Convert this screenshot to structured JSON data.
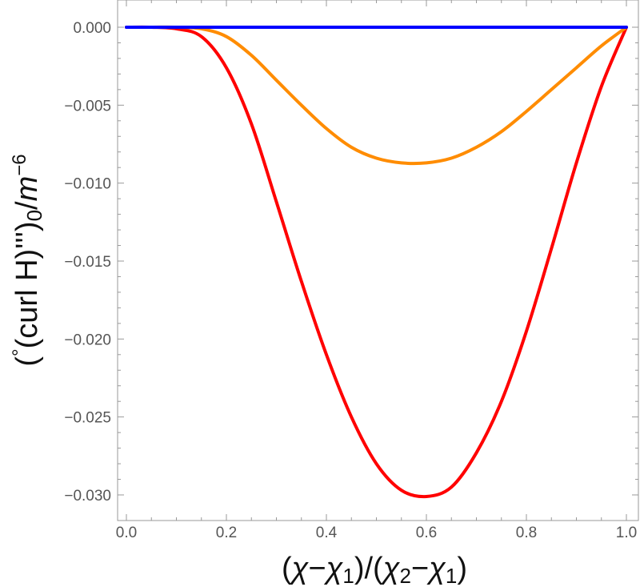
{
  "chart_data": {
    "type": "line",
    "xlabel_parts": [
      "(",
      "χ",
      "−",
      "χ",
      "1",
      ")/(",
      "χ",
      "2",
      "−",
      "χ",
      "1",
      ")"
    ],
    "ylabel_parts": [
      "(",
      "°",
      "(curl H)''')",
      "0",
      "/",
      "m",
      "−6"
    ],
    "xlim": [
      0.0,
      1.0
    ],
    "ylim": [
      -0.0315,
      0.0
    ],
    "x_ticks": [
      "0.0",
      "0.2",
      "0.4",
      "0.6",
      "0.8",
      "1.0"
    ],
    "x_tick_values": [
      0.0,
      0.2,
      0.4,
      0.6,
      0.8,
      1.0
    ],
    "y_ticks": [
      "0.000",
      "-0.005",
      "-0.010",
      "-0.015",
      "-0.020",
      "-0.025",
      "-0.030"
    ],
    "y_tick_values": [
      0.0,
      -0.005,
      -0.01,
      -0.015,
      -0.02,
      -0.025,
      -0.03
    ],
    "grid": false,
    "series": [
      {
        "color": "#ff0000",
        "x": [
          0.0,
          0.05,
          0.1,
          0.15,
          0.2,
          0.25,
          0.3,
          0.35,
          0.4,
          0.45,
          0.5,
          0.55,
          0.6,
          0.65,
          0.7,
          0.75,
          0.8,
          0.85,
          0.9,
          0.95,
          1.0
        ],
        "y": [
          0.0,
          0.0,
          -0.0001,
          -0.0006,
          -0.0026,
          -0.0062,
          -0.0112,
          -0.0163,
          -0.021,
          -0.025,
          -0.028,
          -0.0297,
          -0.0301,
          -0.0295,
          -0.0273,
          -0.024,
          -0.0195,
          -0.0142,
          -0.0087,
          -0.0038,
          0.0
        ]
      },
      {
        "color": "#ff8c00",
        "x": [
          0.0,
          0.05,
          0.1,
          0.15,
          0.2,
          0.25,
          0.3,
          0.35,
          0.4,
          0.45,
          0.5,
          0.55,
          0.6,
          0.65,
          0.7,
          0.75,
          0.8,
          0.85,
          0.9,
          0.95,
          1.0
        ],
        "y": [
          0.0,
          0.0,
          0.0,
          -0.0001,
          -0.0006,
          -0.0018,
          -0.0034,
          -0.005,
          -0.0065,
          -0.0077,
          -0.0084,
          -0.0087,
          -0.0087,
          -0.0084,
          -0.0077,
          -0.0067,
          -0.0054,
          -0.004,
          -0.0026,
          -0.0012,
          0.0
        ]
      },
      {
        "color": "#0000ff",
        "x": [
          0.0,
          1.0
        ],
        "y": [
          0.0,
          0.0
        ]
      }
    ]
  }
}
